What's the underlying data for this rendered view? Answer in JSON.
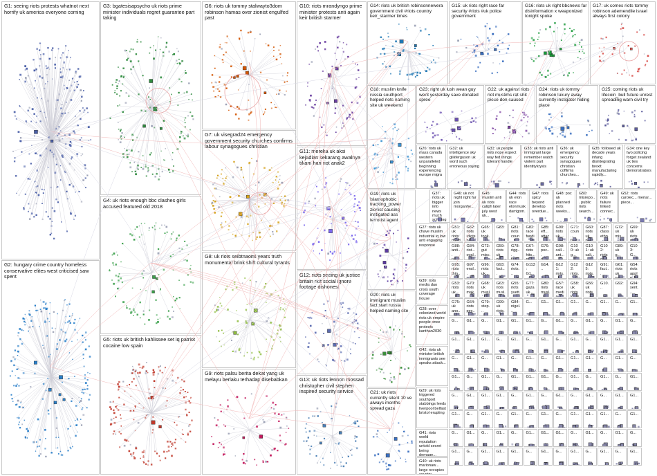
{
  "groups": [
    {
      "id": "G1",
      "label": "G1: seeing riots protests whatnot next horrify uk america everyone coming",
      "color": "#4a5fa8"
    },
    {
      "id": "G2",
      "label": "G2: hungary crime country homeless conservative elites west criticised saw spent",
      "color": "#2a7fc9"
    },
    {
      "id": "G3",
      "label": "G3: bgatesisapsycho uk riots prime minister individuals regret guarantee part taking",
      "color": "#2e8b3e"
    },
    {
      "id": "G4",
      "label": "G4: uk riots enough bbc clashes girls accused featured old 2018",
      "color": "#3aa04a"
    },
    {
      "id": "G5",
      "label": "G5: riots uk british kahlissee set iq patriot cocaine low spain",
      "color": "#c0392b"
    },
    {
      "id": "G6",
      "label": "G6: riots uk tommy stalwayto3dom robinson hamas over zionist engulfed past",
      "color": "#d35400"
    },
    {
      "id": "G7",
      "label": "G7: uk visegrad24 emergency government security churches confirms labour synagogues christian",
      "color": "#d4a017"
    },
    {
      "id": "G8",
      "label": "G8: uk riots seibtnaomi years truth monumental brink shift cultural tyrants",
      "color": "#8fbc3f"
    },
    {
      "id": "G9",
      "label": "G9: riots palsu berita dekat yang uk melayu berlaku terhadap disebabkan",
      "color": "#c2185b"
    },
    {
      "id": "G10",
      "label": "G10: riots mrandyngo prime minister protests anti again keir british starmer",
      "color": "#6a3fa0"
    },
    {
      "id": "G11",
      "label": "G11: mereka uk aksi kejadian sekarang awalnya tikam hari riot anak2",
      "color": "#7b68ee"
    },
    {
      "id": "G12",
      "label": "G12: riots seeing uk justice britain riot social ignore footage dishonest",
      "color": "#5b6bb0"
    },
    {
      "id": "G13",
      "label": "G13: uk riots lennon mossad christopher civil stephen inspired security service",
      "color": "#4a7fb5"
    },
    {
      "id": "G14",
      "label": "G14: riots uk british robinsonnewera government civil #riots country keir_starmer times",
      "color": "#1f77b4"
    },
    {
      "id": "G15",
      "label": "G15: uk riots right race far security #riots #uk police government",
      "color": "#3b6fc0"
    },
    {
      "id": "G16",
      "label": "G16: riots uk right bbcnews far disinformation x weaponized tonight spoke",
      "color": "#1a9a3a"
    },
    {
      "id": "G17",
      "label": "G17: uk comes riots tommy robinson ademendile israel always first colony",
      "color": "#d9534f"
    },
    {
      "id": "G18",
      "label": "G18: muslim knife russia southport helped riots naming site uk weekend",
      "color": "#3a8fd0"
    },
    {
      "id": "G19",
      "label": "G19: riots uk islamophobic tracking_power zionist causing instigated ass terrorist agent",
      "color": "#5b3aa0"
    },
    {
      "id": "G20",
      "label": "G20: riots uk immigrant muslim fact start russia helped naming site",
      "color": "#3a8f3a"
    },
    {
      "id": "G21",
      "label": "G21: uk riots currently silent 10 ve always months spread gaza",
      "color": "#3a6fc0"
    },
    {
      "id": "G22",
      "label": "G22: uk against riots riot muslims rat shit piece don caused",
      "color": "#7a3fa0"
    },
    {
      "id": "G23",
      "label": "G23: right uk lush wean guy went yesterday save donated spree",
      "color": "#6a4fb0"
    },
    {
      "id": "G24",
      "label": "G24: riots uk tommy robinson luxury away currently instigator hiding place",
      "color": "#3a6fc0"
    },
    {
      "id": "G25",
      "label": "G25: coming riots uk lifecoin_bull future unrest spreading warn civil try",
      "color": "#5a5a9a"
    }
  ],
  "grid_columns": [
    {
      "label": "G26: riots uk mass canada western unparalleled beginning experiencing europe migra"
    },
    {
      "label": "G32: uk intelligence sky glikferguson uk word such erroneous saying"
    },
    {
      "label": "G31: uk people riots nope expect way fed things tolerant handle"
    },
    {
      "label": "G33: uk riots anti immigrant large remember watch violent part identitykrysis"
    },
    {
      "label": "G36: uk emergency security synagogues christian coffirms churches..."
    },
    {
      "label": "G35: followed uk decade years infang disintegrating brexit manufacturing rapidly..."
    },
    {
      "label": "G34: one key two policing forget zealand uk ties concerns demonstrators"
    }
  ],
  "small_groups": [
    "G37: riots uk bigger info news much scrolling isn racist aren",
    "G46: uk riot night right far join morganhe...",
    "G45: muslim anti uk riots caliph later july west uk...",
    "G44: riots uk elon race elonmusk darrigom...",
    "G47: riots spicy beyond develop overdue...",
    "G48: poc uk planned riots weeks...",
    "G50: misrepo... public riots search...",
    "G49: uk riots failure linked connec...",
    "G52: riots carolec... meriar... piece..."
  ],
  "left_column_groups": [
    "G27: riots uk chave muslim industrial iq low anti engaging response",
    "G39: riots media duo crisis south coverage house",
    "G28: over colonized world riots uk empire people once protests kanthan2030",
    "G42: riots uk minister british immigrants see speaks attack...",
    "G29: uk riots triggered southport stabbings leeds liverpool belfast bristol erupting",
    "G41: riots world reputation untold secret being demage...",
    "G40: uk riots marionaw... large occupies country bolton...",
    "G43: riots far right middlese... demonstr... race protests...",
    "G30: riots fear uk gbnews people happened 2020 media coverage black"
  ],
  "micro_groups": [
    "G51: uk riots murd... viole... angle... cycle...",
    "G62: riots idiots not... larg...",
    "G65: uk took... ...",
    "G83:",
    "G81: riots coun... first...",
    "G82: race fundi...",
    "G85: eff... attac...",
    "G90: riots uk ...",
    "G71: coun... far... for...",
    "G60: riots uk pr...",
    "G87: class ethn... one...",
    "G72: uk mis...",
    "G69: uk riots mou... cou...",
    "G88: anti... raci...",
    "G84: riot... oval...",
    "G73: gut misc...",
    "G59: riots uk pris... migr... anti",
    "G78: rigg... flam...",
    "G67: riots hits... nigg...",
    "G76: poc... riots hoax...",
    "G98: call... ant...",
    "G100: uk g...",
    "G101: uk cali...",
    "G102: riots offi...",
    "G89: uk g...",
    "G103: G...",
    "G95: riots thin...",
    "G97: ensl... uns...",
    "G96: riots uk...",
    "G93: fact...",
    "G74: riots...",
    "G113: G1...",
    "G14...",
    "G121: riots...",
    "G122: riots...",
    "G125: riots...",
    "G91: fact...",
    "G61: riots uk russ... migr...",
    "G54: riots apple prefe... adva...",
    "G53: riots uk...",
    "G70: riots mak...",
    "G68: uk musl...",
    "G63: riots musl... aga...",
    "G55: riots yvett...",
    "G77: gaza uk...",
    "G80: riots musl...",
    "G57: race media... hom...",
    "G58: uk riots looted amon...",
    "G56: uk riots",
    "G10...",
    "G92:",
    "G94: sent...",
    "G75: uk ano...",
    "G64: riots pec...",
    "G79: step...",
    "G99: uk riots...",
    "G84: nigel..."
  ],
  "tiny_labels": [
    "G1...",
    "G...",
    "G1...",
    "G...",
    "G1...",
    "G...",
    "G1...",
    "G...",
    "G1...",
    "G1..."
  ]
}
